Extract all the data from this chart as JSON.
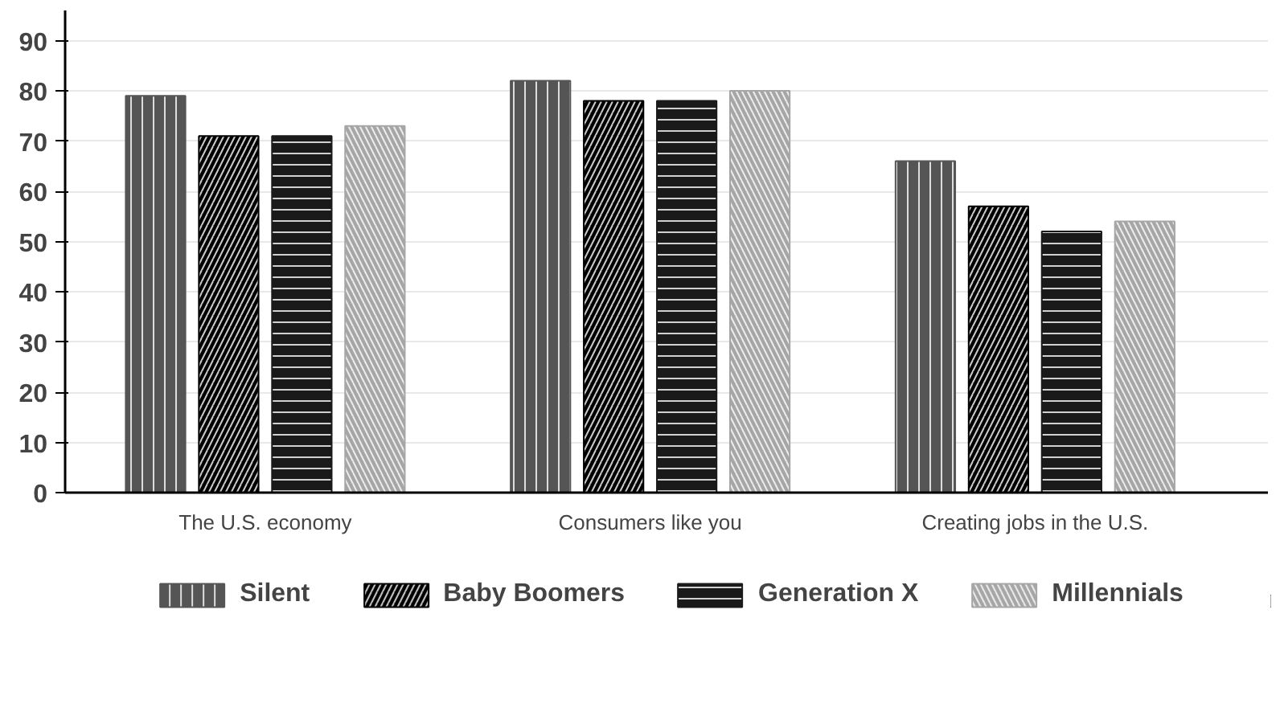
{
  "chart_data": {
    "type": "bar",
    "categories": [
      "The U.S. economy",
      "Consumers like you",
      "Creating jobs in the U.S."
    ],
    "series": [
      {
        "name": "Silent",
        "color": "#555555",
        "values": [
          79,
          82,
          66
        ]
      },
      {
        "name": "Baby Boomers",
        "color": "#000000",
        "values": [
          71,
          78,
          57
        ]
      },
      {
        "name": "Generation X",
        "color": "#1a1a1a",
        "values": [
          71,
          78,
          52
        ]
      },
      {
        "name": "Millennials",
        "color": "#a6a6a6",
        "values": [
          73,
          80,
          54
        ]
      }
    ],
    "ylim": [
      0,
      96
    ],
    "yticks": [
      0,
      10,
      20,
      30,
      40,
      50,
      60,
      70,
      80,
      90
    ],
    "grid": "y",
    "legend": "bottom"
  }
}
